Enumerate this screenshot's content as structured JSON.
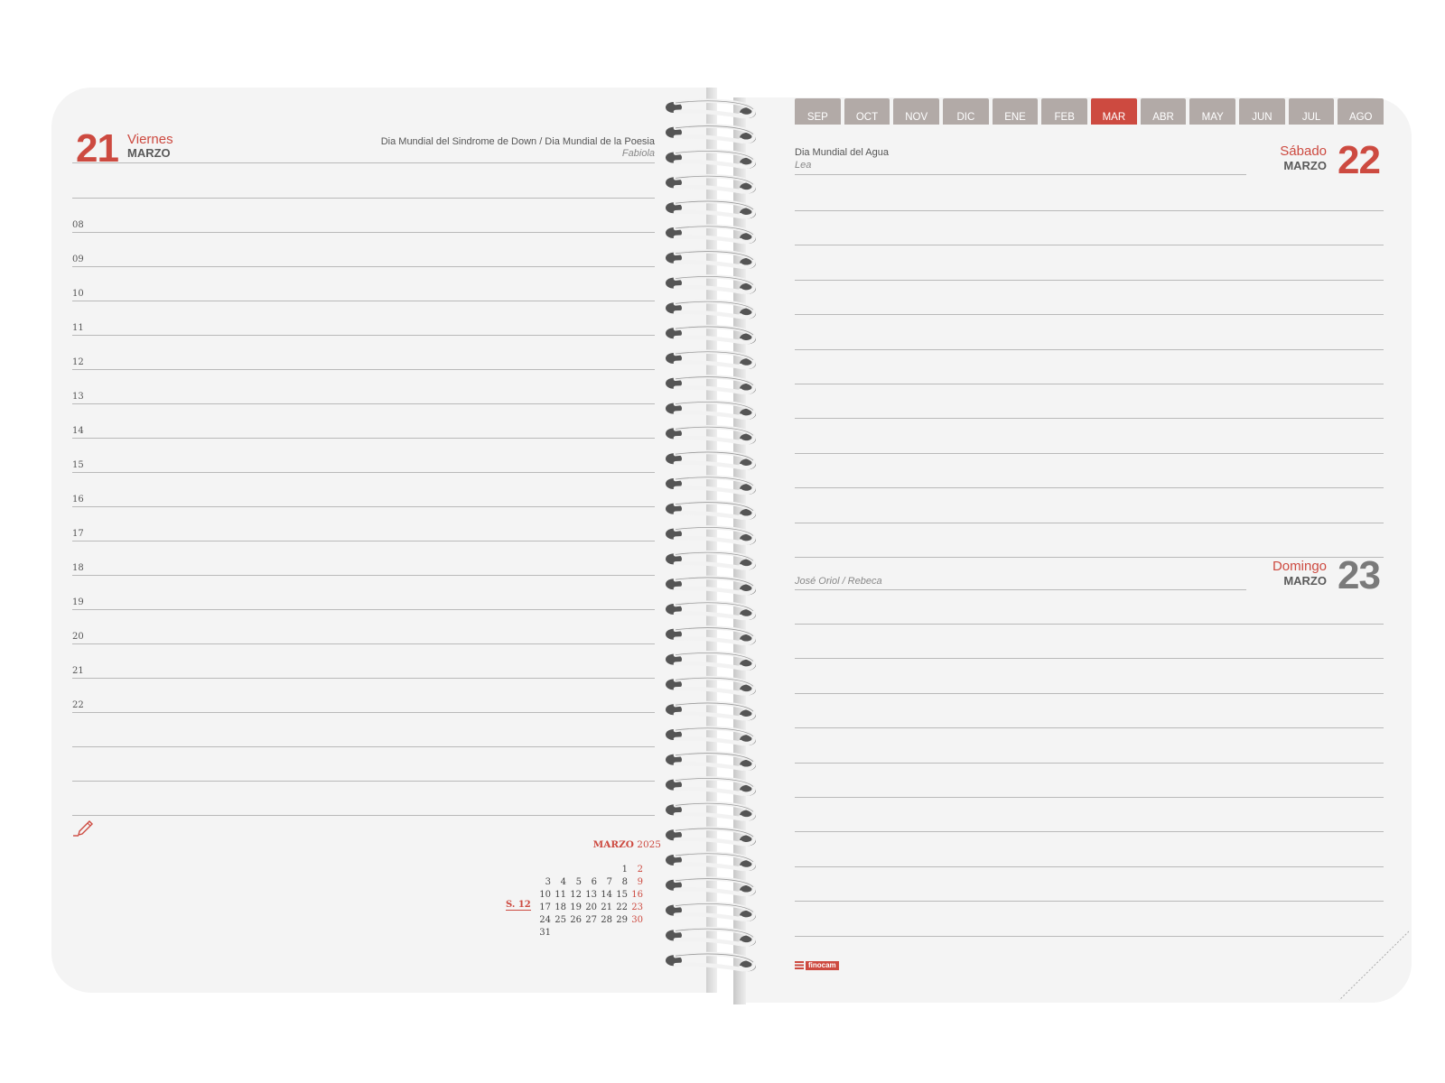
{
  "left": {
    "day": "21",
    "weekday": "Viernes",
    "month": "MARZO",
    "event": "Dia Mundial del Sindrome de Down / Dia Mundial de la Poesia",
    "saint": "Fabiola",
    "hours": [
      "08",
      "09",
      "10",
      "11",
      "12",
      "13",
      "14",
      "15",
      "16",
      "17",
      "18",
      "19",
      "20",
      "21",
      "22"
    ]
  },
  "tabs": [
    "SEP",
    "OCT",
    "NOV",
    "DIC",
    "ENE",
    "FEB",
    "MAR",
    "ABR",
    "MAY",
    "JUN",
    "JUL",
    "AGO"
  ],
  "active_tab": "MAR",
  "right_top": {
    "day": "22",
    "weekday": "Sábado",
    "month": "MARZO",
    "event": "Dia Mundial del Agua",
    "saint": "Lea"
  },
  "right_bottom": {
    "day": "23",
    "weekday": "Domingo",
    "month": "MARZO",
    "saint": "José Oriol / Rebeca"
  },
  "mini_calendar": {
    "title_month": "MARZO",
    "title_year": "2025",
    "week_label": "S. 12",
    "rows": [
      [
        "",
        "",
        "",
        "",
        "",
        "1",
        "2"
      ],
      [
        "3",
        "4",
        "5",
        "6",
        "7",
        "8",
        "9"
      ],
      [
        "10",
        "11",
        "12",
        "13",
        "14",
        "15",
        "16"
      ],
      [
        "17",
        "18",
        "19",
        "20",
        "21",
        "22",
        "23"
      ],
      [
        "24",
        "25",
        "26",
        "27",
        "28",
        "29",
        "30"
      ],
      [
        "31",
        "",
        "",
        "",
        "",
        "",
        ""
      ]
    ]
  },
  "brand": "finocam",
  "colors": {
    "accent": "#cd4a40",
    "tab": "#b2aaa7",
    "paper": "#f4f4f4"
  },
  "icons": {
    "notes": "pencil-icon",
    "binding": "spiral-binding"
  }
}
